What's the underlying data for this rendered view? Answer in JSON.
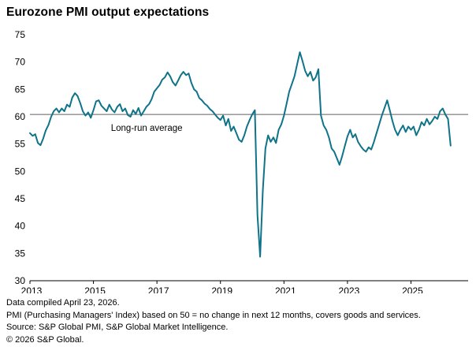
{
  "header": {
    "title": "Eurozone PMI output expectations"
  },
  "footer": {
    "lines": [
      "Data compiled April 23, 2026.",
      "PMI (Purchasing Managers' Index) based on 50 = no change in next 12 months, covers goods and services.",
      "Source: S&P Global PMI, S&P Global Market Intelligence.",
      "© 2026 S&P Global."
    ]
  },
  "chart_data": {
    "type": "line",
    "title": "Eurozone PMI output expectations",
    "xlabel": "",
    "ylabel": "",
    "ylim": [
      30,
      75
    ],
    "ytick_step": 5,
    "xlim": [
      2013,
      2026.8
    ],
    "xticks": [
      2013,
      2015,
      2017,
      2019,
      2021,
      2023,
      2025
    ],
    "grid": false,
    "legend_position": "none",
    "line_color": "#0f7389",
    "avg_line": {
      "value": 60.4,
      "label": "Long-run average",
      "color": "#8c8c8c",
      "label_x": 2015.55,
      "label_y": 57.4
    },
    "series": [
      {
        "name": "PMI output expectations",
        "color": "#0f7389",
        "start_year": 2013,
        "frequency": "monthly",
        "last_point": "April 2026",
        "monthly_values": [
          57.0,
          56.5,
          56.8,
          55.2,
          54.8,
          56.0,
          57.5,
          58.5,
          60.0,
          61.0,
          61.5,
          60.8,
          61.5,
          61.0,
          62.2,
          61.8,
          63.5,
          64.3,
          63.8,
          62.5,
          61.0,
          60.2,
          60.8,
          59.8,
          61.2,
          62.8,
          63.0,
          62.0,
          61.5,
          61.0,
          62.2,
          61.3,
          60.8,
          61.8,
          62.3,
          61.0,
          61.5,
          60.3,
          60.0,
          61.2,
          60.5,
          61.6,
          60.2,
          61.0,
          61.8,
          62.3,
          63.2,
          64.6,
          65.2,
          65.8,
          66.8,
          67.2,
          68.1,
          67.4,
          66.3,
          65.7,
          66.6,
          67.6,
          68.2,
          67.6,
          67.9,
          66.2,
          65.0,
          64.6,
          63.4,
          63.0,
          62.4,
          62.0,
          61.4,
          61.0,
          60.4,
          59.8,
          59.4,
          60.2,
          58.4,
          59.6,
          57.4,
          58.2,
          57.0,
          55.8,
          55.4,
          56.6,
          58.2,
          59.4,
          60.4,
          61.2,
          42.0,
          34.4,
          46.5,
          54.2,
          56.6,
          55.4,
          56.2,
          55.2,
          57.6,
          58.6,
          60.2,
          62.4,
          64.6,
          66.0,
          67.4,
          69.6,
          71.8,
          70.2,
          68.4,
          67.4,
          68.2,
          66.6,
          67.2,
          68.7,
          60.2,
          58.4,
          57.6,
          56.2,
          54.2,
          53.6,
          52.4,
          51.2,
          52.8,
          54.6,
          56.4,
          57.6,
          56.2,
          56.8,
          55.4,
          54.6,
          54.0,
          53.6,
          54.4,
          54.0,
          55.4,
          57.0,
          58.6,
          60.2,
          61.6,
          63.0,
          61.2,
          59.2,
          57.6,
          56.6,
          57.6,
          58.4,
          57.2,
          58.2,
          57.6,
          58.2,
          56.6,
          57.6,
          59.0,
          58.4,
          59.6,
          58.6,
          59.2,
          60.0,
          59.6,
          61.0,
          61.5,
          60.4,
          59.6,
          54.7
        ]
      }
    ]
  }
}
